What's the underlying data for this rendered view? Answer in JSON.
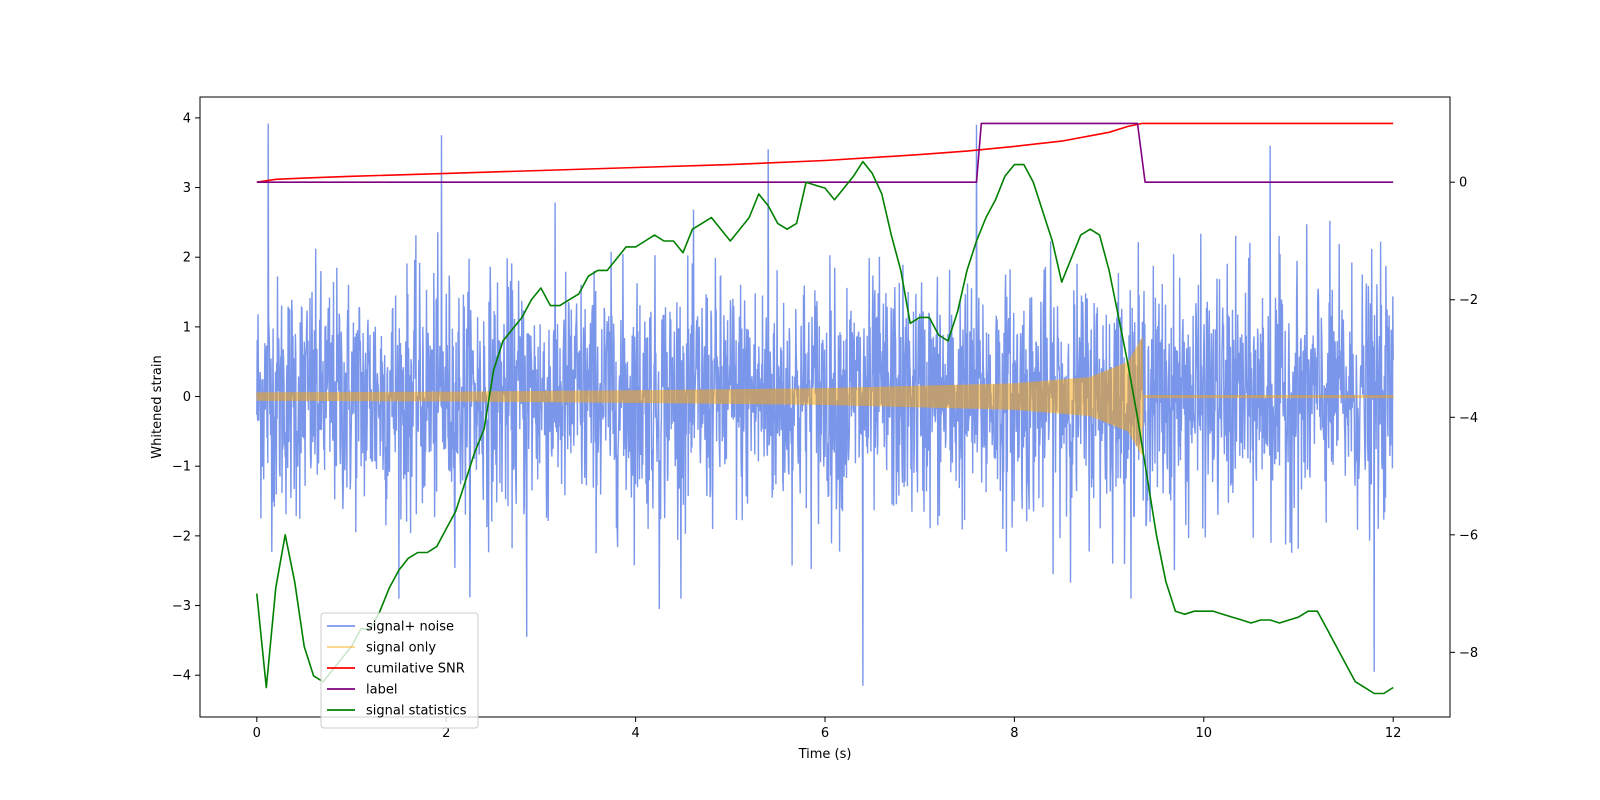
{
  "chart_data": {
    "type": "line",
    "title": "",
    "xlabel": "Time (s)",
    "ylabel": "Whitened strain",
    "xlim": [
      -0.6,
      12.6
    ],
    "ylim": [
      -4.6,
      4.3
    ],
    "y2lim": [
      -9.1,
      1.45
    ],
    "xticks": [
      0,
      2,
      4,
      6,
      8,
      10,
      12
    ],
    "xtick_labels": [
      "0",
      "2",
      "4",
      "6",
      "8",
      "10",
      "12"
    ],
    "yticks": [
      -4,
      -3,
      -2,
      -1,
      0,
      1,
      2,
      3,
      4
    ],
    "ytick_labels": [
      "−4",
      "−3",
      "−2",
      "−1",
      "0",
      "1",
      "2",
      "3",
      "4"
    ],
    "y2ticks": [
      -8,
      -6,
      -4,
      -2,
      0
    ],
    "y2tick_labels": [
      "−8",
      "−6",
      "−4",
      "−2",
      "0"
    ],
    "legend_location": "lower-left",
    "legend": [
      {
        "label": "signal+ noise",
        "color": "#4169e1"
      },
      {
        "label": "signal only",
        "color": "#ffa500"
      },
      {
        "label": "cumilative SNR",
        "color": "#ff0000"
      },
      {
        "label": "label",
        "color": "#800080"
      },
      {
        "label": "signal statistics",
        "color": "#008000"
      }
    ],
    "series": [
      {
        "name": "signal+ noise",
        "axis": "left",
        "color": "#4169e1",
        "style": "dense random noise, approx. N(0,1)",
        "x_range": [
          0,
          12
        ],
        "typical_range": [
          -2.2,
          2.2
        ],
        "extremes": [
          {
            "x": 0.12,
            "y": 3.92
          },
          {
            "x": 1.95,
            "y": 3.75
          },
          {
            "x": 5.4,
            "y": 3.55
          },
          {
            "x": 6.4,
            "y": -4.15
          },
          {
            "x": 7.6,
            "y": 3.9
          },
          {
            "x": 11.8,
            "y": -3.95
          },
          {
            "x": 10.7,
            "y": 3.6
          },
          {
            "x": 4.25,
            "y": -3.05
          },
          {
            "x": 2.85,
            "y": -3.45
          }
        ]
      },
      {
        "name": "signal only",
        "axis": "left",
        "color": "#ffa500",
        "style": "chirp envelope",
        "envelope": [
          [
            0,
            0.06
          ],
          [
            2,
            0.07
          ],
          [
            4,
            0.09
          ],
          [
            6,
            0.12
          ],
          [
            8,
            0.19
          ],
          [
            8.8,
            0.28
          ],
          [
            9.2,
            0.5
          ],
          [
            9.35,
            0.85
          ],
          [
            9.36,
            0.02
          ],
          [
            12,
            0.02
          ]
        ]
      },
      {
        "name": "cumilative SNR",
        "axis": "right",
        "color": "#ff0000",
        "x": [
          0,
          0.2,
          0.5,
          1,
          2,
          3,
          4,
          5,
          6,
          7,
          7.5,
          8,
          8.5,
          9,
          9.2,
          9.35,
          12
        ],
        "y": [
          0.0,
          0.05,
          0.07,
          0.1,
          0.15,
          0.2,
          0.25,
          0.3,
          0.37,
          0.47,
          0.53,
          0.61,
          0.7,
          0.85,
          0.95,
          1.0,
          1.0
        ]
      },
      {
        "name": "label",
        "axis": "right",
        "color": "#800080",
        "x": [
          0,
          7.6,
          7.65,
          9.3,
          9.38,
          12
        ],
        "y": [
          0,
          0,
          1.0,
          1.0,
          0,
          0
        ]
      },
      {
        "name": "signal statistics",
        "axis": "right",
        "color": "#008000",
        "x": [
          0,
          0.1,
          0.2,
          0.3,
          0.4,
          0.5,
          0.6,
          0.7,
          0.8,
          0.9,
          1.0,
          1.1,
          1.2,
          1.3,
          1.4,
          1.5,
          1.6,
          1.7,
          1.8,
          1.9,
          2.0,
          2.1,
          2.2,
          2.3,
          2.4,
          2.5,
          2.6,
          2.7,
          2.8,
          2.9,
          3.0,
          3.1,
          3.2,
          3.3,
          3.4,
          3.5,
          3.6,
          3.7,
          3.8,
          3.9,
          4.0,
          4.1,
          4.2,
          4.3,
          4.4,
          4.5,
          4.6,
          4.7,
          4.8,
          4.9,
          5.0,
          5.1,
          5.2,
          5.3,
          5.4,
          5.5,
          5.6,
          5.7,
          5.8,
          5.9,
          6.0,
          6.1,
          6.2,
          6.3,
          6.4,
          6.5,
          6.6,
          6.7,
          6.8,
          6.9,
          7.0,
          7.1,
          7.2,
          7.3,
          7.4,
          7.5,
          7.6,
          7.7,
          7.8,
          7.9,
          8.0,
          8.1,
          8.2,
          8.3,
          8.4,
          8.5,
          8.6,
          8.7,
          8.8,
          8.9,
          9.0,
          9.1,
          9.2,
          9.3,
          9.4,
          9.5,
          9.6,
          9.7,
          9.8,
          9.9,
          10.0,
          10.1,
          10.2,
          10.3,
          10.4,
          10.5,
          10.6,
          10.7,
          10.8,
          10.9,
          11.0,
          11.1,
          11.2,
          11.3,
          11.4,
          11.5,
          11.6,
          11.7,
          11.8,
          11.9,
          12.0
        ],
        "y": [
          -7.0,
          -8.6,
          -6.9,
          -6.0,
          -6.8,
          -7.9,
          -8.4,
          -8.5,
          -8.3,
          -8.1,
          -7.9,
          -7.6,
          -7.6,
          -7.3,
          -6.9,
          -6.6,
          -6.4,
          -6.3,
          -6.3,
          -6.2,
          -5.9,
          -5.6,
          -5.1,
          -4.6,
          -4.2,
          -3.2,
          -2.7,
          -2.5,
          -2.3,
          -2.0,
          -1.8,
          -2.1,
          -2.1,
          -2.0,
          -1.9,
          -1.6,
          -1.5,
          -1.5,
          -1.3,
          -1.1,
          -1.1,
          -1.0,
          -0.9,
          -1.0,
          -1.0,
          -1.2,
          -0.8,
          -0.7,
          -0.6,
          -0.8,
          -1.0,
          -0.8,
          -0.6,
          -0.2,
          -0.4,
          -0.7,
          -0.8,
          -0.7,
          0.0,
          -0.05,
          -0.1,
          -0.3,
          -0.1,
          0.1,
          0.35,
          0.15,
          -0.2,
          -0.9,
          -1.5,
          -2.4,
          -2.3,
          -2.3,
          -2.6,
          -2.7,
          -2.2,
          -1.5,
          -1.0,
          -0.6,
          -0.3,
          0.1,
          0.3,
          0.3,
          0.0,
          -0.5,
          -1.0,
          -1.7,
          -1.3,
          -0.9,
          -0.8,
          -0.9,
          -1.5,
          -2.3,
          -3.1,
          -4.0,
          -5.0,
          -6.0,
          -6.8,
          -7.3,
          -7.35,
          -7.3,
          -7.3,
          -7.3,
          -7.35,
          -7.4,
          -7.45,
          -7.5,
          -7.45,
          -7.45,
          -7.5,
          -7.45,
          -7.4,
          -7.3,
          -7.3,
          -7.6,
          -7.9,
          -8.2,
          -8.5,
          -8.6,
          -8.7,
          -8.7,
          -8.6
        ]
      }
    ]
  }
}
